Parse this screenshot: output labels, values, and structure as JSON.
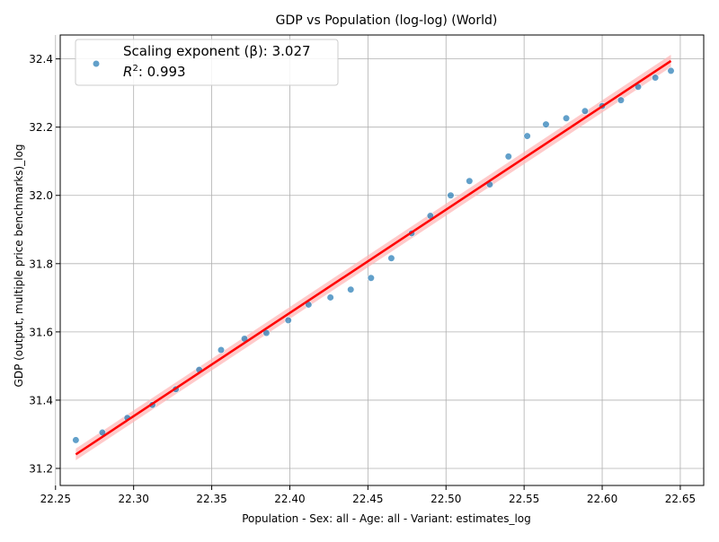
{
  "chart_data": {
    "type": "scatter",
    "title": "GDP vs Population (log-log) (World)",
    "xlabel": "Population - Sex: all - Age: all - Variant: estimates_log",
    "ylabel": "GDP (output, multiple price benchmarks)_log",
    "xlim": [
      22.253,
      22.665
    ],
    "ylim": [
      31.15,
      32.47
    ],
    "x_ticks": [
      "22.25",
      "22.30",
      "22.35",
      "22.40",
      "22.45",
      "22.50",
      "22.55",
      "22.60",
      "22.65"
    ],
    "y_ticks": [
      "31.2",
      "31.4",
      "31.6",
      "31.8",
      "32.0",
      "32.2",
      "32.4"
    ],
    "grid": true,
    "legend_position": "top-left",
    "legend": {
      "line1": "Scaling exponent (β): 3.027",
      "line2_label": "R",
      "line2_sup": "2",
      "line2_value": ": 0.993"
    },
    "colors": {
      "points": "#1f77b4",
      "fit_line": "#ff0000",
      "ci_band": "#ffb3b3"
    },
    "points": {
      "x": [
        22.263,
        22.28,
        22.296,
        22.312,
        22.327,
        22.342,
        22.356,
        22.371,
        22.385,
        22.399,
        22.412,
        22.426,
        22.439,
        22.452,
        22.465,
        22.478,
        22.49,
        22.503,
        22.515,
        22.528,
        22.54,
        22.552,
        22.564,
        22.577,
        22.589,
        22.6,
        22.612,
        22.623,
        22.634,
        22.644
      ],
      "y": [
        31.283,
        31.305,
        31.348,
        31.386,
        31.432,
        31.489,
        31.547,
        31.58,
        31.597,
        31.634,
        31.68,
        31.701,
        31.724,
        31.758,
        31.816,
        31.889,
        31.94,
        32.0,
        32.042,
        32.032,
        32.114,
        32.174,
        32.208,
        32.226,
        32.247,
        32.262,
        32.279,
        32.318,
        32.345,
        32.365
      ]
    },
    "fit_line": {
      "x": [
        22.263,
        22.644
      ],
      "y": [
        31.241,
        32.394
      ]
    },
    "ci_band": {
      "x": [
        22.263,
        22.644
      ],
      "lower": [
        31.224,
        32.376
      ],
      "upper": [
        31.258,
        32.412
      ]
    }
  }
}
